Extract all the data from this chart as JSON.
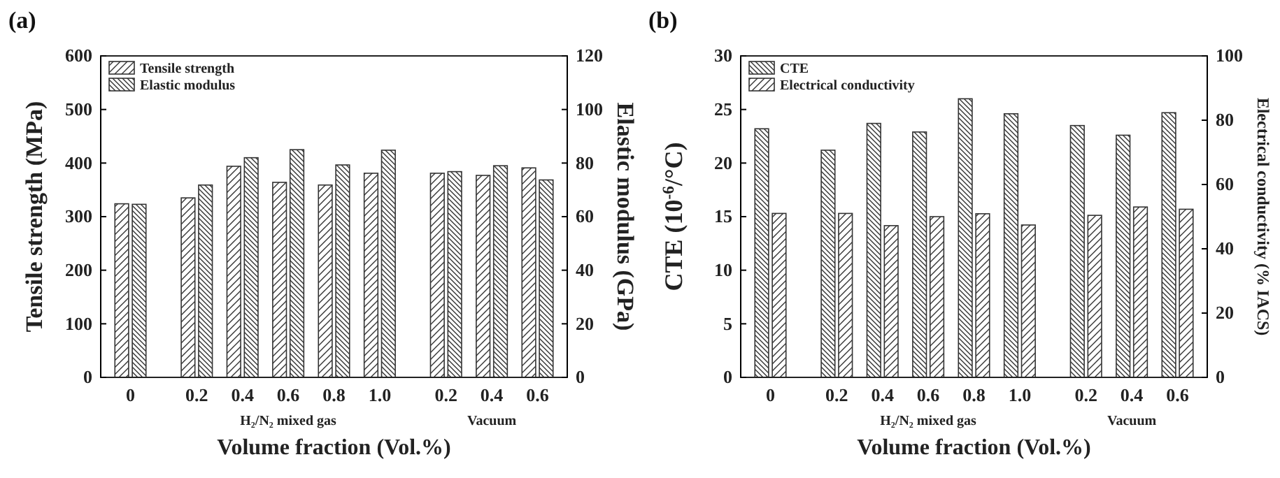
{
  "chart_data": [
    {
      "type": "bar",
      "title": "(a)",
      "xlabel": "Volume fraction (Vol.%)",
      "ylabel": "Tensile strength (MPa)",
      "y2label": "Elastic modulus (GPa)",
      "categories": [
        "0",
        "0.2",
        "0.4",
        "0.6",
        "0.8",
        "1.0",
        "0.2",
        "0.4",
        "0.6"
      ],
      "series": [
        {
          "name": "Tensile strength",
          "color": "#333333",
          "values": [
            324,
            335,
            394,
            364,
            359,
            381,
            381,
            377,
            391
          ]
        },
        {
          "name": "Elastic modulus",
          "color": "#333333",
          "axis": "y2",
          "values": [
            64.6,
            71.8,
            82,
            85,
            79.3,
            84.8,
            76.8,
            79,
            73.7
          ]
        }
      ],
      "ylim": [
        0,
        600
      ],
      "yticks": [
        0,
        100,
        200,
        300,
        400,
        500,
        600
      ],
      "y2lim": [
        0,
        120
      ],
      "y2ticks": [
        0,
        20,
        40,
        60,
        80,
        100,
        120
      ],
      "annotations": [
        "H₂/N₂ mixed gas",
        "Vacuum"
      ],
      "legend": "top left",
      "grid": false
    },
    {
      "type": "bar",
      "title": "(b)",
      "xlabel": "Volume fraction (Vol.%)",
      "ylabel": "CTE (10$^{-6}$/°C)",
      "y2label": "Electrical conductivity (% IACS)",
      "categories": [
        "0",
        "0.2",
        "0.4",
        "0.6",
        "0.8",
        "1.0",
        "0.2",
        "0.4",
        "0.6"
      ],
      "series": [
        {
          "name": "CTE",
          "color": "#333333",
          "values": [
            23.2,
            21.2,
            23.7,
            22.9,
            26.0,
            24.6,
            23.5,
            22.6,
            24.7
          ]
        },
        {
          "name": "Electrical conductivity",
          "color": "#333333",
          "axis": "y2",
          "values": [
            51,
            51,
            47.2,
            50,
            50.9,
            47.4,
            50.4,
            53,
            52.3
          ]
        }
      ],
      "ylim": [
        0,
        30
      ],
      "yticks": [
        0,
        5,
        10,
        15,
        20,
        25,
        30
      ],
      "y2lim": [
        0,
        100
      ],
      "y2ticks": [
        0,
        20,
        40,
        60,
        80,
        100
      ],
      "annotations": [
        "H₂/N₂ mixed gas",
        "Vacuum"
      ],
      "legend": "top left",
      "grid": false
    }
  ]
}
